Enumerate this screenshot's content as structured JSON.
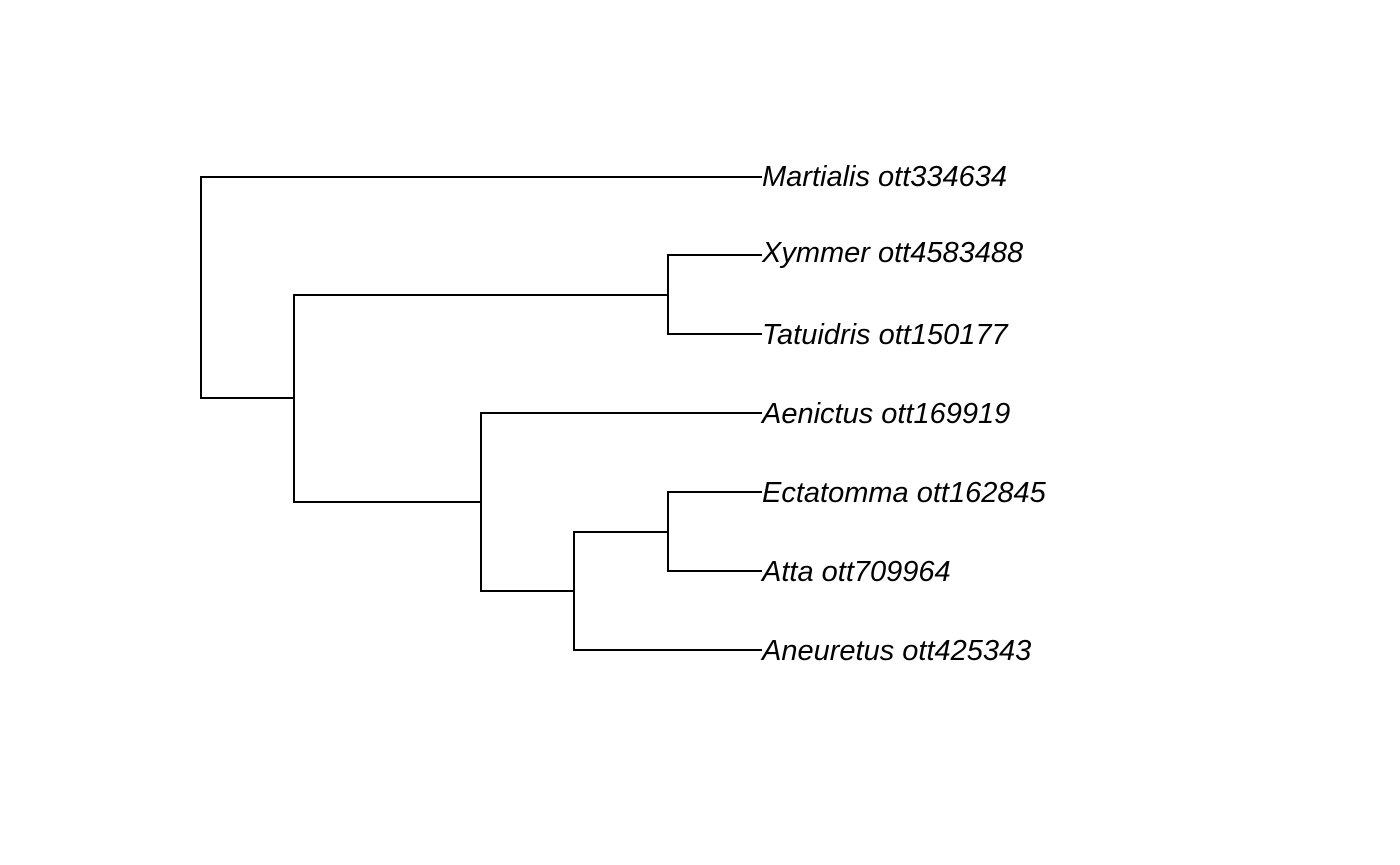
{
  "tree": {
    "newick": "(Martialis_ott334634,((Xymmer_ott4583488,Tatuidris_ott150177),(Aenictus_ott169919,((Ectatomma_ott162845,Atta_ott709964),Aneuretus_ott425343))));",
    "tips": [
      "Martialis ott334634",
      "Xymmer ott4583488",
      "Tatuidris ott150177",
      "Aenictus ott169919",
      "Ectatomma ott162845",
      "Atta ott709964",
      "Aneuretus ott425343"
    ],
    "line_color": "#000000"
  }
}
